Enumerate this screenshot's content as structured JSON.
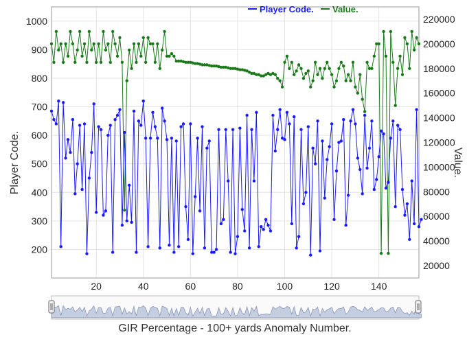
{
  "chart_data": {
    "type": "line",
    "xlabel": "GIR Percentage - 100+ yards Anomaly Number.",
    "ylabel_left": "Player Code.",
    "ylabel_right": "Value.",
    "xlim": [
      1,
      157
    ],
    "ylim_left": [
      100,
      1050
    ],
    "ylim_right": [
      10000,
      230000
    ],
    "x_ticks": [
      20,
      40,
      60,
      80,
      100,
      120,
      140
    ],
    "y_ticks_left": [
      200,
      300,
      400,
      500,
      600,
      700,
      800,
      900,
      1000
    ],
    "y_ticks_right": [
      20000,
      40000,
      60000,
      80000,
      100000,
      120000,
      140000,
      160000,
      180000,
      200000,
      220000
    ],
    "grid": true,
    "legend_position": "top-center",
    "series": [
      {
        "name": "Player Code.",
        "axis": "left",
        "color": "#1a1aff",
        "values": [
          685,
          655,
          640,
          720,
          210,
          715,
          520,
          585,
          540,
          655,
          395,
          500,
          635,
          410,
          640,
          185,
          450,
          540,
          710,
          330,
          630,
          620,
          320,
          335,
          600,
          635,
          190,
          655,
          670,
          690,
          285,
          610,
          300,
          425,
          295,
          685,
          190,
          650,
          635,
          720,
          590,
          210,
          590,
          680,
          630,
          590,
          205,
          695,
          650,
          585,
          215,
          590,
          190,
          580,
          210,
          630,
          640,
          350,
          235,
          640,
          185,
          385,
          590,
          335,
          630,
          205,
          555,
          580,
          190,
          190,
          200,
          620,
          290,
          305,
          620,
          440,
          190,
          620,
          185,
          245,
          625,
          340,
          265,
          670,
          205,
          620,
          440,
          680,
          210,
          280,
          270,
          305,
          285,
          265,
          670,
          545,
          620,
          690,
          590,
          585,
          680,
          640,
          290,
          665,
          205,
          245,
          620,
          360,
          400,
          630,
          180,
          555,
          500,
          650,
          195,
          580,
          380,
          515,
          560,
          640,
          305,
          475,
          575,
          580,
          655,
          285,
          390,
          650,
          690,
          640,
          520,
          480,
          395,
          670,
          485,
          555,
          650,
          410,
          445,
          525,
          615,
          605,
          415,
          435,
          590,
          650,
          350,
          635,
          620,
          410,
          320,
          360,
          235,
          440,
          290,
          690,
          280,
          305
        ],
        "note": "approximate readings of 157 points"
      },
      {
        "name": "Value.",
        "axis": "right",
        "color": "#1a7a1a",
        "values": [
          200000,
          185000,
          210000,
          195000,
          200000,
          185000,
          200000,
          190000,
          210000,
          200000,
          185000,
          195000,
          210000,
          190000,
          200000,
          185000,
          210000,
          195000,
          200000,
          185000,
          200000,
          185000,
          210000,
          195000,
          200000,
          185000,
          210000,
          200000,
          190000,
          205000,
          185000,
          65000,
          170000,
          195000,
          180000,
          200000,
          185000,
          200000,
          190000,
          205000,
          185000,
          205000,
          200000,
          200000,
          185000,
          200000,
          180000,
          195000,
          210000,
          190000,
          190000,
          192000,
          190000,
          186000,
          186000,
          186000,
          185500,
          185000,
          185000,
          185000,
          184500,
          184000,
          184000,
          183500,
          183000,
          183000,
          183000,
          182500,
          182000,
          182000,
          182000,
          181500,
          181000,
          181000,
          181000,
          180500,
          180000,
          180000,
          180000,
          179500,
          179000,
          179000,
          178500,
          178000,
          177000,
          176000,
          176000,
          175000,
          175000,
          174000,
          174000,
          175000,
          176000,
          175000,
          176000,
          175000,
          172000,
          170000,
          165000,
          185000,
          190000,
          180000,
          185000,
          175000,
          178000,
          183000,
          180000,
          172000,
          176000,
          178000,
          165000,
          170000,
          185000,
          175000,
          180000,
          172000,
          180000,
          185000,
          180000,
          175000,
          165000,
          170000,
          180000,
          185000,
          182000,
          170000,
          175000,
          170000,
          185000,
          165000,
          160000,
          175000,
          155000,
          145000,
          185000,
          180000,
          180000,
          190000,
          200000,
          200000,
          30000,
          210000,
          190000,
          30000,
          210000,
          185000,
          150000,
          180000,
          190000,
          175000,
          205000,
          200000,
          180000,
          210000,
          195000,
          205000,
          200000
        ]
      }
    ]
  },
  "navigator": {
    "left_handle": "navigator-left-handle",
    "right_handle": "navigator-right-handle"
  }
}
